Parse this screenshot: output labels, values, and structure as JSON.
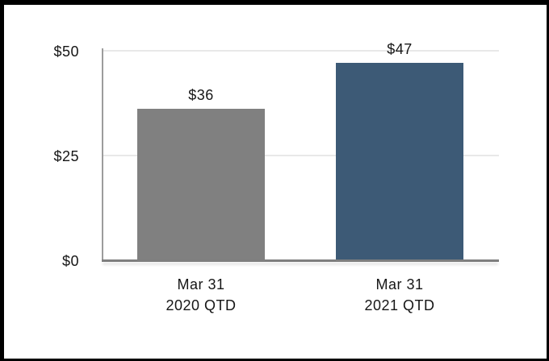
{
  "chart_data": {
    "type": "bar",
    "title": "",
    "xlabel": "",
    "ylabel": "",
    "ylim": [
      0,
      50
    ],
    "grid": "horizontal",
    "legend": "none",
    "categories": [
      "Mar 31 2020 QTD",
      "Mar 31 2021 QTD"
    ],
    "values": [
      36,
      47
    ],
    "yticks": [
      {
        "value": 50,
        "label": "$50"
      },
      {
        "value": 25,
        "label": "$25"
      },
      {
        "value": 0,
        "label": "$0"
      }
    ],
    "bars": [
      {
        "category_line1": "Mar 31",
        "category_line2": "2020 QTD",
        "value": 36,
        "value_label": "$36",
        "color": "#808080"
      },
      {
        "category_line1": "Mar 31",
        "category_line2": "2021 QTD",
        "value": 47,
        "value_label": "$47",
        "color": "#3D5A76"
      }
    ]
  },
  "colors": {
    "background": "#FFFFFF",
    "border": "#000000",
    "gridline": "#E8E8E8",
    "y_axis_line": "#9C9C9C",
    "x_axis_line": "#7F7F7F",
    "text": "#161616",
    "bar_2020": "#808080",
    "bar_2021": "#3D5A76"
  }
}
